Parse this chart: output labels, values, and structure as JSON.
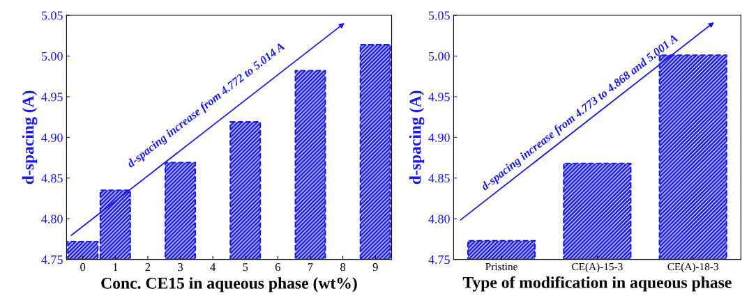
{
  "chart_data": [
    {
      "type": "bar",
      "categories": [
        "0",
        "1",
        "2",
        "3",
        "4",
        "5",
        "6",
        "7",
        "8",
        "9"
      ],
      "values": [
        4.772,
        4.835,
        null,
        4.869,
        null,
        4.919,
        null,
        4.982,
        null,
        5.014
      ],
      "color": "#1a1ae6",
      "ylim": [
        4.75,
        5.05
      ],
      "yticks": [
        4.75,
        {
          "value": 4.8,
          "label": "4.80"
        },
        4.85,
        {
          "value": 4.9,
          "label": "4.90"
        },
        4.95,
        {
          "value": 5.0,
          "label": "5.00"
        },
        5.05
      ],
      "xlabel": "Conc. CE15 in aqueous phase (wt%)",
      "ylabel": "d-spacing (A)",
      "annotations": [
        "d-spacing increase from 4.772 to 5.014 A"
      ],
      "grid": false,
      "legend": false
    },
    {
      "type": "bar",
      "categories": [
        "Pristine",
        "CE(A)-15-3",
        "CE(A)-18-3"
      ],
      "values": [
        4.773,
        4.868,
        5.001
      ],
      "color": "#1a1ae6",
      "ylim": [
        4.75,
        5.05
      ],
      "yticks": [
        4.75,
        {
          "value": 4.8,
          "label": "4.80"
        },
        4.85,
        {
          "value": 4.9,
          "label": "4.90"
        },
        4.95,
        {
          "value": 5.0,
          "label": "5.00"
        },
        5.05
      ],
      "xlabel": "Type of modification in aqueous phase",
      "ylabel": "d-spacing (A)",
      "annotations": [
        "d-spacing increase from 4.773 to 4.868 and 5.001 A"
      ],
      "grid": false,
      "legend": false
    }
  ]
}
